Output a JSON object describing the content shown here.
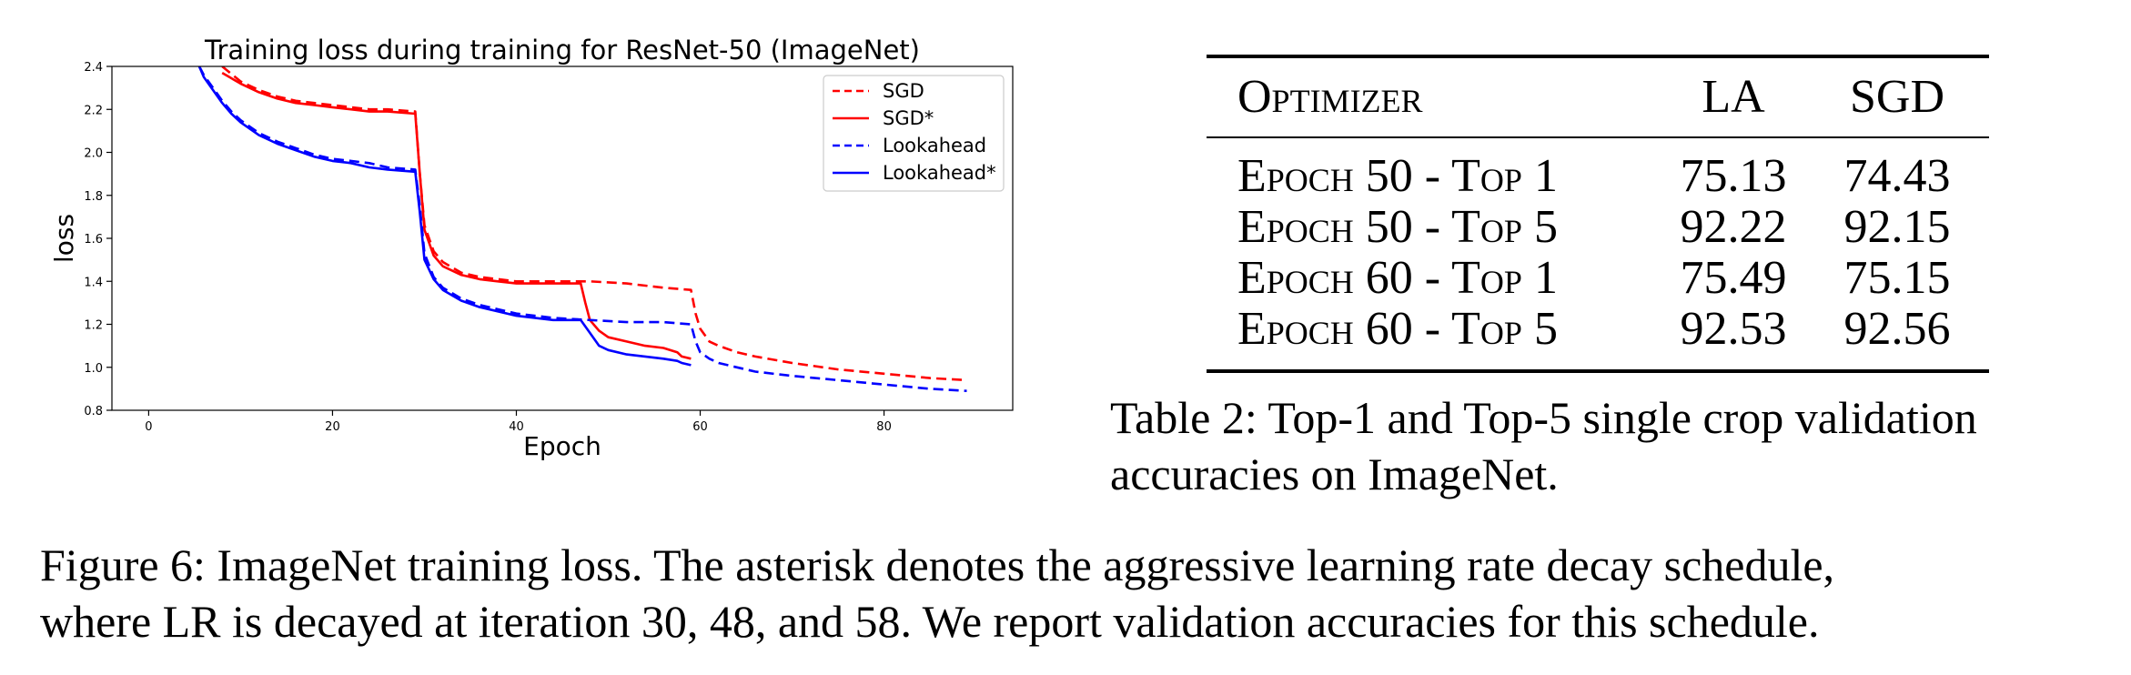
{
  "chart_data": {
    "type": "line",
    "title": "Training loss during training for ResNet-50 (ImageNet)",
    "xlabel": "Epoch",
    "ylabel": "loss",
    "xlim": [
      -4,
      94
    ],
    "ylim": [
      0.8,
      2.4
    ],
    "xticks": [
      0,
      20,
      40,
      60,
      80
    ],
    "yticks": [
      0.8,
      1.0,
      1.2,
      1.4,
      1.6,
      1.8,
      2.0,
      2.2,
      2.4
    ],
    "xtick_labels": [
      "0",
      "20",
      "40",
      "60",
      "80"
    ],
    "ytick_labels": [
      "0.8",
      "1.0",
      "1.2",
      "1.4",
      "1.6",
      "1.8",
      "2.0",
      "2.2",
      "2.4"
    ],
    "grid": false,
    "legend_position": "top-right",
    "series": [
      {
        "name": "SGD",
        "color": "#ff0000",
        "dash": "dashed",
        "x": [
          8,
          10,
          12,
          14,
          16,
          18,
          20,
          22,
          24,
          26,
          29,
          29.5,
          30,
          31,
          32,
          34,
          36,
          38,
          40,
          44,
          48,
          52,
          56,
          59,
          59.5,
          60,
          61,
          62,
          64,
          66,
          70,
          75,
          80,
          85,
          89
        ],
        "y": [
          2.4,
          2.33,
          2.29,
          2.26,
          2.24,
          2.23,
          2.22,
          2.21,
          2.2,
          2.2,
          2.19,
          1.9,
          1.66,
          1.54,
          1.49,
          1.44,
          1.42,
          1.41,
          1.4,
          1.4,
          1.4,
          1.39,
          1.37,
          1.36,
          1.25,
          1.18,
          1.12,
          1.1,
          1.07,
          1.05,
          1.02,
          0.99,
          0.97,
          0.95,
          0.94
        ]
      },
      {
        "name": "SGD*",
        "color": "#ff0000",
        "dash": "solid",
        "x": [
          8,
          10,
          12,
          14,
          16,
          18,
          20,
          22,
          24,
          26,
          29,
          29.5,
          30,
          31,
          32,
          34,
          36,
          38,
          40,
          44,
          47,
          47.5,
          48,
          49,
          50,
          52,
          54,
          56,
          57.5,
          58,
          59
        ],
        "y": [
          2.37,
          2.32,
          2.28,
          2.25,
          2.23,
          2.22,
          2.21,
          2.2,
          2.19,
          2.19,
          2.18,
          1.9,
          1.64,
          1.52,
          1.47,
          1.43,
          1.41,
          1.4,
          1.39,
          1.39,
          1.39,
          1.3,
          1.22,
          1.17,
          1.14,
          1.12,
          1.1,
          1.09,
          1.07,
          1.05,
          1.04
        ]
      },
      {
        "name": "Lookahead",
        "color": "#0000ff",
        "dash": "dashed",
        "x": [
          5.5,
          6,
          7,
          8,
          9,
          10,
          12,
          14,
          16,
          18,
          20,
          22,
          24,
          26,
          29,
          29.5,
          30,
          31,
          32,
          34,
          36,
          38,
          40,
          44,
          48,
          52,
          56,
          59,
          59.5,
          60,
          61,
          62,
          64,
          66,
          70,
          75,
          80,
          85,
          89
        ],
        "y": [
          2.4,
          2.36,
          2.3,
          2.24,
          2.19,
          2.15,
          2.09,
          2.05,
          2.02,
          1.99,
          1.97,
          1.96,
          1.95,
          1.93,
          1.92,
          1.75,
          1.53,
          1.42,
          1.37,
          1.32,
          1.29,
          1.27,
          1.25,
          1.23,
          1.22,
          1.21,
          1.21,
          1.2,
          1.12,
          1.07,
          1.04,
          1.02,
          1.0,
          0.98,
          0.96,
          0.94,
          0.92,
          0.9,
          0.89
        ]
      },
      {
        "name": "Lookahead*",
        "color": "#0000ff",
        "dash": "solid",
        "x": [
          5.5,
          6,
          7,
          8,
          9,
          10,
          12,
          14,
          16,
          18,
          20,
          22,
          24,
          26,
          29,
          29.5,
          30,
          31,
          32,
          34,
          36,
          38,
          40,
          44,
          47,
          48,
          49,
          50,
          52,
          54,
          56,
          57.5,
          58,
          59
        ],
        "y": [
          2.4,
          2.35,
          2.29,
          2.23,
          2.18,
          2.14,
          2.08,
          2.04,
          2.01,
          1.98,
          1.96,
          1.95,
          1.93,
          1.92,
          1.91,
          1.72,
          1.5,
          1.41,
          1.36,
          1.31,
          1.28,
          1.26,
          1.24,
          1.22,
          1.22,
          1.16,
          1.1,
          1.08,
          1.06,
          1.05,
          1.04,
          1.03,
          1.02,
          1.01
        ]
      }
    ]
  },
  "table": {
    "headers": [
      "Optimizer",
      "LA",
      "SGD"
    ],
    "rows": [
      [
        "Epoch 50 - Top 1",
        "75.13",
        "74.43"
      ],
      [
        "Epoch 50 - Top 5",
        "92.22",
        "92.15"
      ],
      [
        "Epoch 60 - Top 1",
        "75.49",
        "75.15"
      ],
      [
        "Epoch 60 - Top 5",
        "92.53",
        "92.56"
      ]
    ]
  },
  "table_caption": {
    "line1": "Table 2: Top-1 and Top-5 single crop validation",
    "line2": "accuracies on ImageNet."
  },
  "figure_caption": {
    "line1": "Figure 6: ImageNet training loss. The asterisk denotes the aggressive learning rate decay schedule,",
    "line2": "where LR is decayed at iteration 30, 48, and 58. We report validation accuracies for this schedule."
  }
}
